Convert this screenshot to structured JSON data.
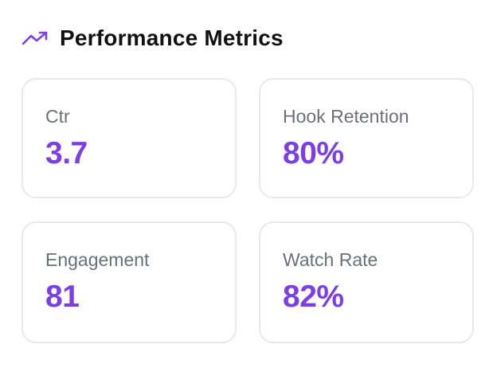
{
  "header": {
    "title": "Performance Metrics",
    "icon": "trending-up-icon",
    "accent_color": "#7b3fe4"
  },
  "metrics": [
    {
      "label": "Ctr",
      "value": "3.7"
    },
    {
      "label": "Hook Retention",
      "value": "80%"
    },
    {
      "label": "Engagement",
      "value": "81"
    },
    {
      "label": "Watch Rate",
      "value": "82%"
    }
  ]
}
